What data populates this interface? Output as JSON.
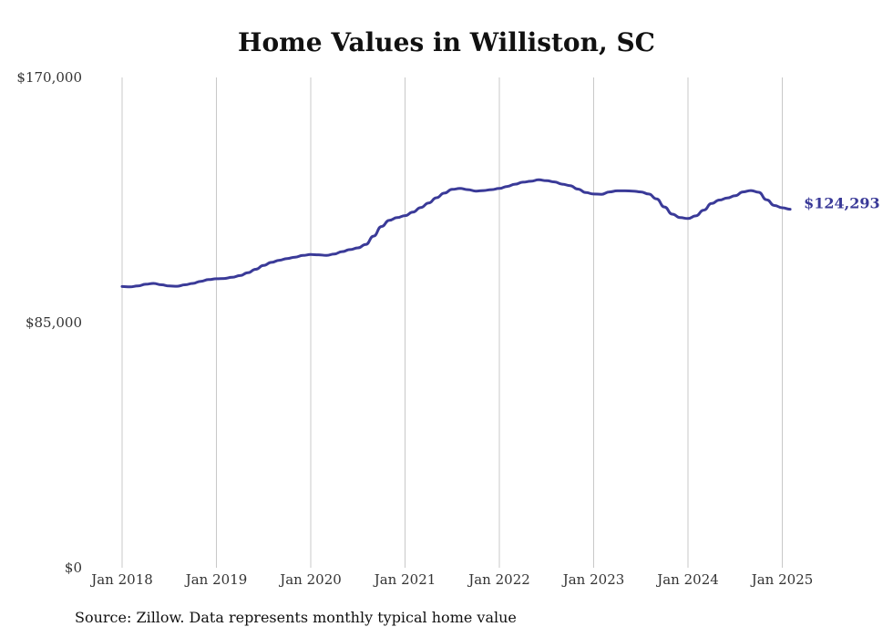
{
  "chart_data": {
    "type": "line",
    "title": "Home Values in Williston, SC",
    "ylim": [
      0,
      170000
    ],
    "y_ticks": [
      {
        "value": 0,
        "label": "$0"
      },
      {
        "value": 85000,
        "label": "$85,000"
      },
      {
        "value": 170000,
        "label": "$170,000"
      }
    ],
    "x_ticks": [
      "Jan 2018",
      "Jan 2019",
      "Jan 2020",
      "Jan 2021",
      "Jan 2022",
      "Jan 2023",
      "Jan 2024",
      "Jan 2025"
    ],
    "x_start": "2018-01",
    "series": [
      {
        "color": "#3a3a98",
        "values": [
          97500,
          97400,
          97700,
          98300,
          98600,
          98100,
          97700,
          97600,
          98100,
          98600,
          99300,
          99900,
          100200,
          100300,
          100700,
          101300,
          102300,
          103500,
          104800,
          105900,
          106600,
          107200,
          107700,
          108300,
          108600,
          108500,
          108300,
          108800,
          109600,
          110300,
          110900,
          112100,
          115000,
          118300,
          120500,
          121400,
          122100,
          123300,
          124900,
          126500,
          128300,
          129900,
          131200,
          131500,
          131100,
          130600,
          130800,
          131100,
          131500,
          132200,
          133000,
          133700,
          134000,
          134500,
          134200,
          133800,
          133000,
          132500,
          131300,
          130100,
          129600,
          129500,
          130300,
          130700,
          130700,
          130600,
          130300,
          129600,
          127900,
          125100,
          122600,
          121400,
          121100,
          122000,
          124000,
          126300,
          127500,
          128200,
          129000,
          130300,
          130800,
          130200,
          127600,
          125600,
          124800,
          124293
        ]
      }
    ],
    "end_label": "$124,293",
    "grid": {
      "vertical": true,
      "horizontal": false
    }
  },
  "footer": {
    "source": "Source: Zillow. Data represents monthly typical home value"
  }
}
